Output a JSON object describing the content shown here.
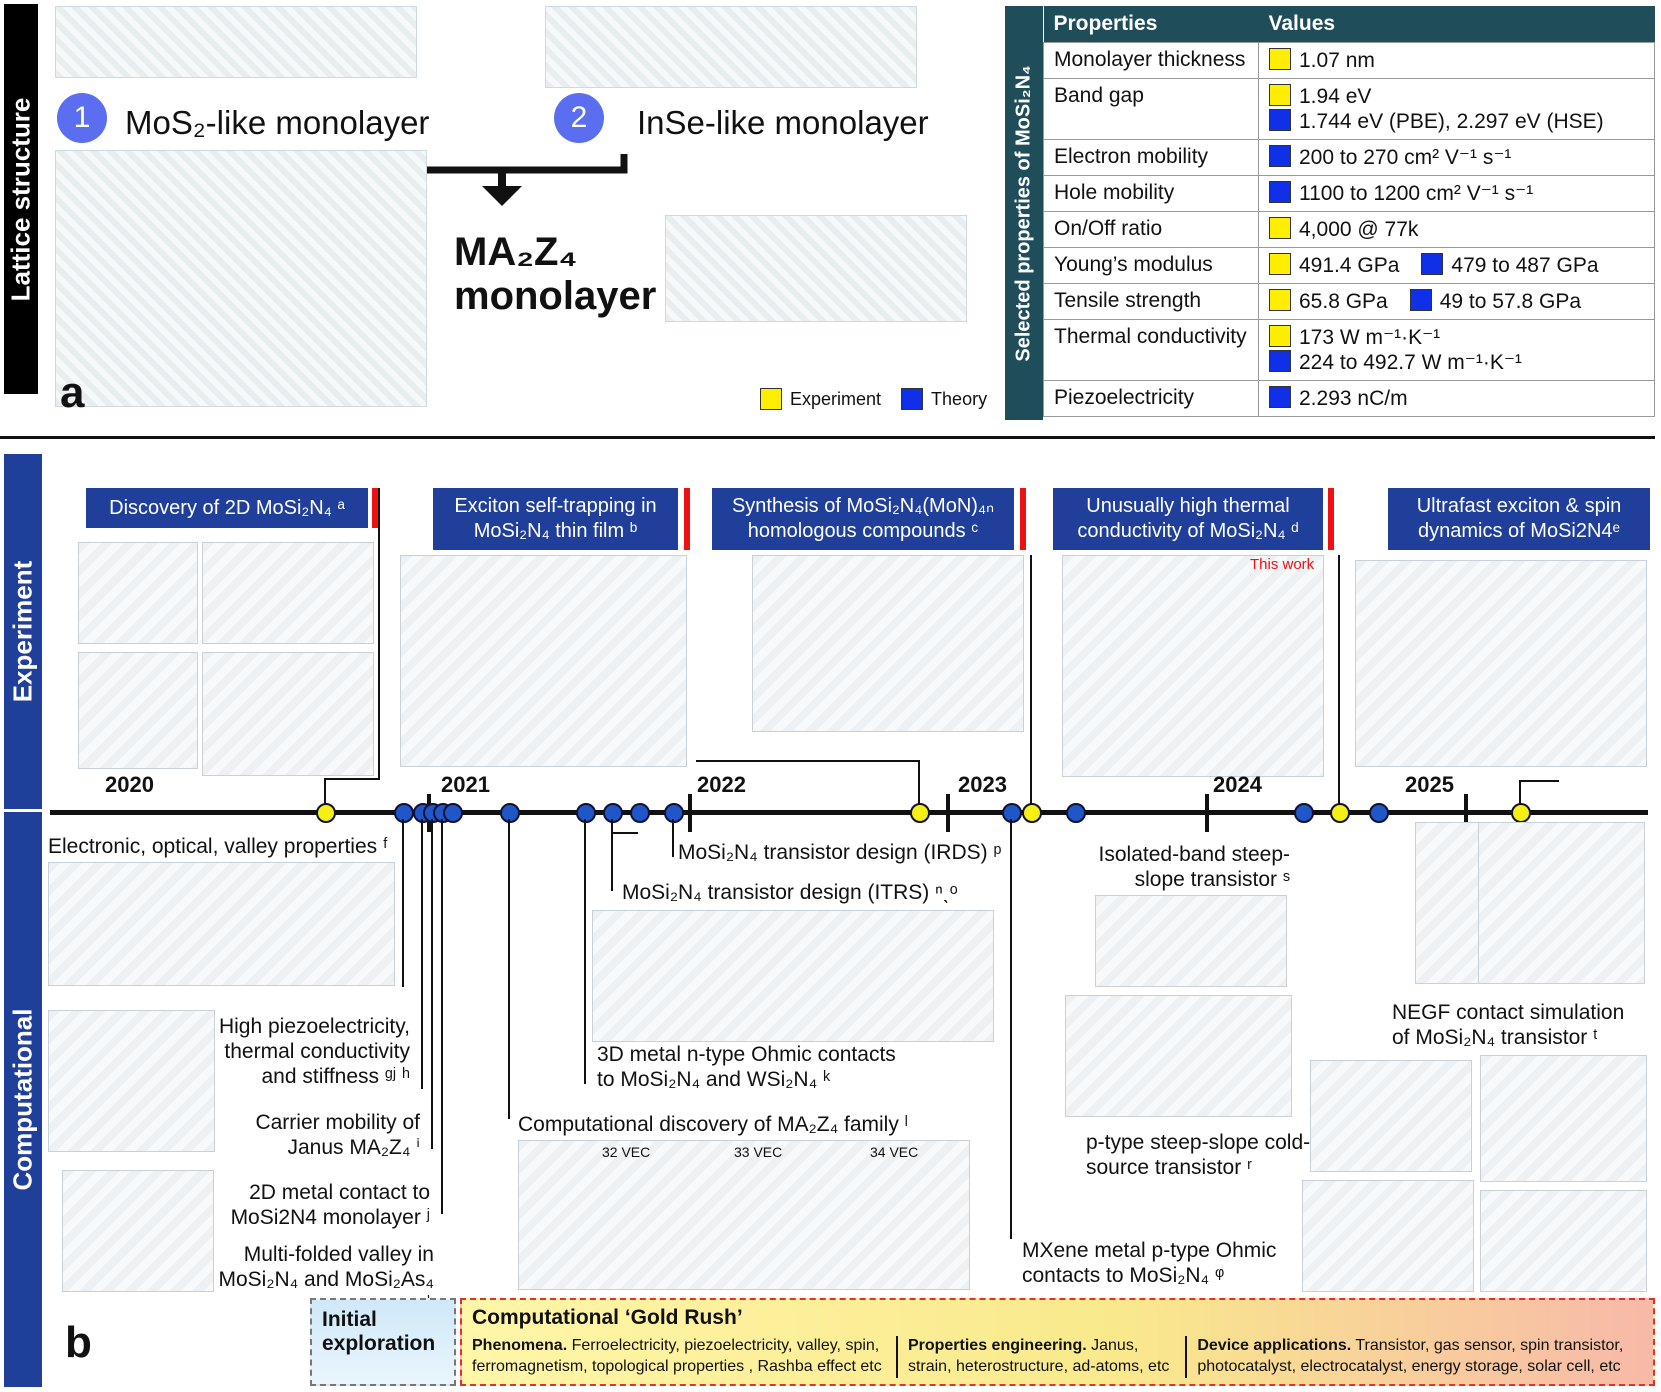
{
  "panel_a": {
    "side_label": "Lattice structure",
    "item1_number": "1",
    "item1_label": "MoS₂-like monolayer",
    "item2_number": "2",
    "item2_label": "InSe-like monolayer",
    "center_label_line1": "MA₂Z₄",
    "center_label_line2": "monolayer",
    "panel_letter": "a",
    "legend_experiment": "Experiment",
    "legend_theory": "Theory"
  },
  "properties_table": {
    "side_label": "Selected properties of MoSi₂N₄",
    "col_properties": "Properties",
    "col_values": "Values",
    "rows": [
      {
        "property": "Monolayer thickness",
        "values": [
          {
            "type": "exp",
            "text": "1.07 nm"
          }
        ]
      },
      {
        "property": "Band gap",
        "values": [
          {
            "type": "exp",
            "text": "1.94 eV"
          },
          {
            "type": "theory",
            "text": "1.744 eV (PBE), 2.297 eV (HSE)"
          }
        ]
      },
      {
        "property": "Electron mobility",
        "values": [
          {
            "type": "theory",
            "text": "200 to 270 cm² V⁻¹ s⁻¹"
          }
        ]
      },
      {
        "property": "Hole mobility",
        "values": [
          {
            "type": "theory",
            "text": "1100 to 1200 cm² V⁻¹ s⁻¹"
          }
        ]
      },
      {
        "property": "On/Off ratio",
        "values": [
          {
            "type": "exp",
            "text": "4,000 @ 77k"
          }
        ]
      },
      {
        "property": "Young’s modulus",
        "values": [
          {
            "type": "exp",
            "text": "491.4 GPa"
          },
          {
            "type": "theory",
            "text": "479 to 487 GPa"
          }
        ]
      },
      {
        "property": "Tensile strength",
        "values": [
          {
            "type": "exp",
            "text": "65.8 GPa"
          },
          {
            "type": "theory",
            "text": "49 to 57.8 GPa"
          }
        ]
      },
      {
        "property": "Thermal conductivity",
        "values": [
          {
            "type": "exp",
            "text": "173 W m⁻¹·K⁻¹"
          },
          {
            "type": "theory",
            "text": "224 to 492.7 W m⁻¹·K⁻¹"
          }
        ]
      },
      {
        "property": "Piezoelectricity",
        "values": [
          {
            "type": "theory",
            "text": "2.293 nC/m"
          }
        ]
      }
    ]
  },
  "panel_b": {
    "side_experiment": "Experiment",
    "side_computational": "Computational",
    "panel_letter": "b",
    "experiment_headers": [
      "Discovery of 2D MoSi₂N₄ ᵃ",
      "Exciton self-trapping in MoSi₂N₄ thin film ᵇ",
      "Synthesis of MoSi₂N₄(MoN)₄ₙ homologous compounds ᶜ",
      "Unusually high thermal conductivity of MoSi₂N₄ ᵈ",
      "Ultrafast exciton & spin dynamics of MoSi2N4ᵉ"
    ],
    "years": [
      "2020",
      "2021",
      "2022",
      "2023",
      "2024",
      "2025"
    ],
    "thermal_chart_tag": "This work",
    "computational_labels": [
      "Electronic, optical, valley properties ᶠ",
      "High piezoelectricity, thermal conductivity and stiffness ᵍʲ ʰ",
      "Carrier mobility of Janus MA₂Z₄ ⁱ",
      "2D metal contact to MoSi2N4 monolayer ʲ",
      "Multi-folded valley in MoSi₂N₄ and MoSi₂As₄ ᵏ",
      "MoSi₂N₄ transistor design (IRDS) ᵖ",
      "MoSi₂N₄ transistor design (ITRS) ⁿˎᵒ",
      "3D metal n-type Ohmic contacts to MoSi₂N₄ and WSi₂N₄ ᵏ",
      "Computational discovery of MA₂Z₄ family ˡ",
      "Isolated-band steep-slope transistor ˢ",
      "p-type steep-slope cold-source transistor ʳ",
      "MXene metal p-type Ohmic contacts to MoSi₂N₄ ᵠ",
      "NEGF contact simulation of MoSi₂N₄ transistor ᵗ"
    ],
    "family_chart_vecs": [
      "32 VEC",
      "33 VEC",
      "34 VEC"
    ],
    "strip_initial": "Initial exploration",
    "strip_gold_title": "Computational ‘Gold Rush’",
    "strip_phenomena_head": "Phenomena.",
    "strip_phenomena_body": "Ferroelectricity, piezoelectricity, valley, spin, ferromagnetism, topological properties , Rashba effect etc",
    "strip_props_head": "Properties engineering.",
    "strip_props_body": "Janus, strain, heterostructure, ad-atoms, etc",
    "strip_device_head": "Device applications.",
    "strip_device_body": "Transistor, gas sensor, spin transistor, photocatalyst, electrocatalyst, energy storage, solar cell, etc"
  }
}
